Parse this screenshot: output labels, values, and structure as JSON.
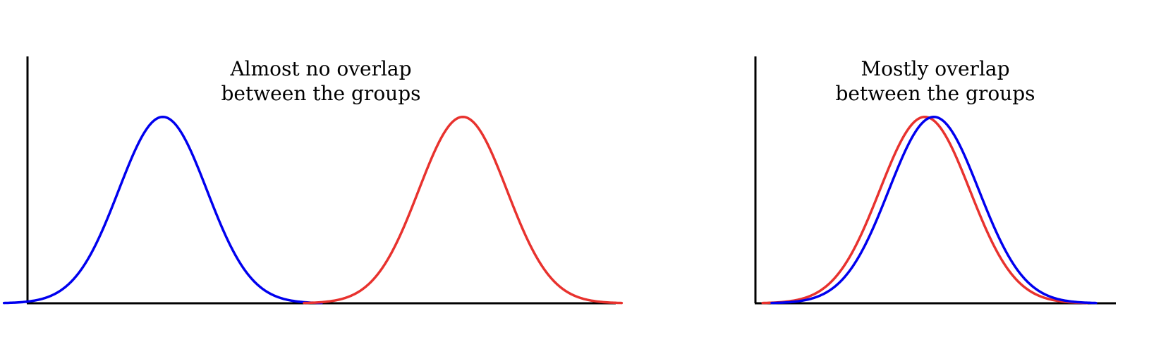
{
  "colors": {
    "blue": "#0000ee",
    "red": "#e8322e",
    "axis": "#000000"
  },
  "chart_data": [
    {
      "type": "line",
      "title": [
        "Almost no overlap",
        "between the groups"
      ],
      "xlabel": "",
      "ylabel": "",
      "grid": false,
      "xlim": [
        0,
        10
      ],
      "ylim": [
        0,
        1.4
      ],
      "series": [
        {
          "color": "#0000ee",
          "kind": "normal-density",
          "mean": 2.3,
          "sd": 0.75,
          "peak": 1.0
        },
        {
          "color": "#e8322e",
          "kind": "normal-density",
          "mean": 7.4,
          "sd": 0.75,
          "peak": 1.0
        }
      ]
    },
    {
      "type": "line",
      "title": [
        "Mostly overlap",
        "between the groups"
      ],
      "xlabel": "",
      "ylabel": "",
      "grid": false,
      "xlim": [
        0,
        10
      ],
      "ylim": [
        0,
        1.4
      ],
      "series": [
        {
          "color": "#e8322e",
          "kind": "normal-density",
          "mean": 4.7,
          "sd": 1.25,
          "peak": 1.0
        },
        {
          "color": "#0000ee",
          "kind": "normal-density",
          "mean": 4.95,
          "sd": 1.25,
          "peak": 1.0
        }
      ]
    }
  ]
}
